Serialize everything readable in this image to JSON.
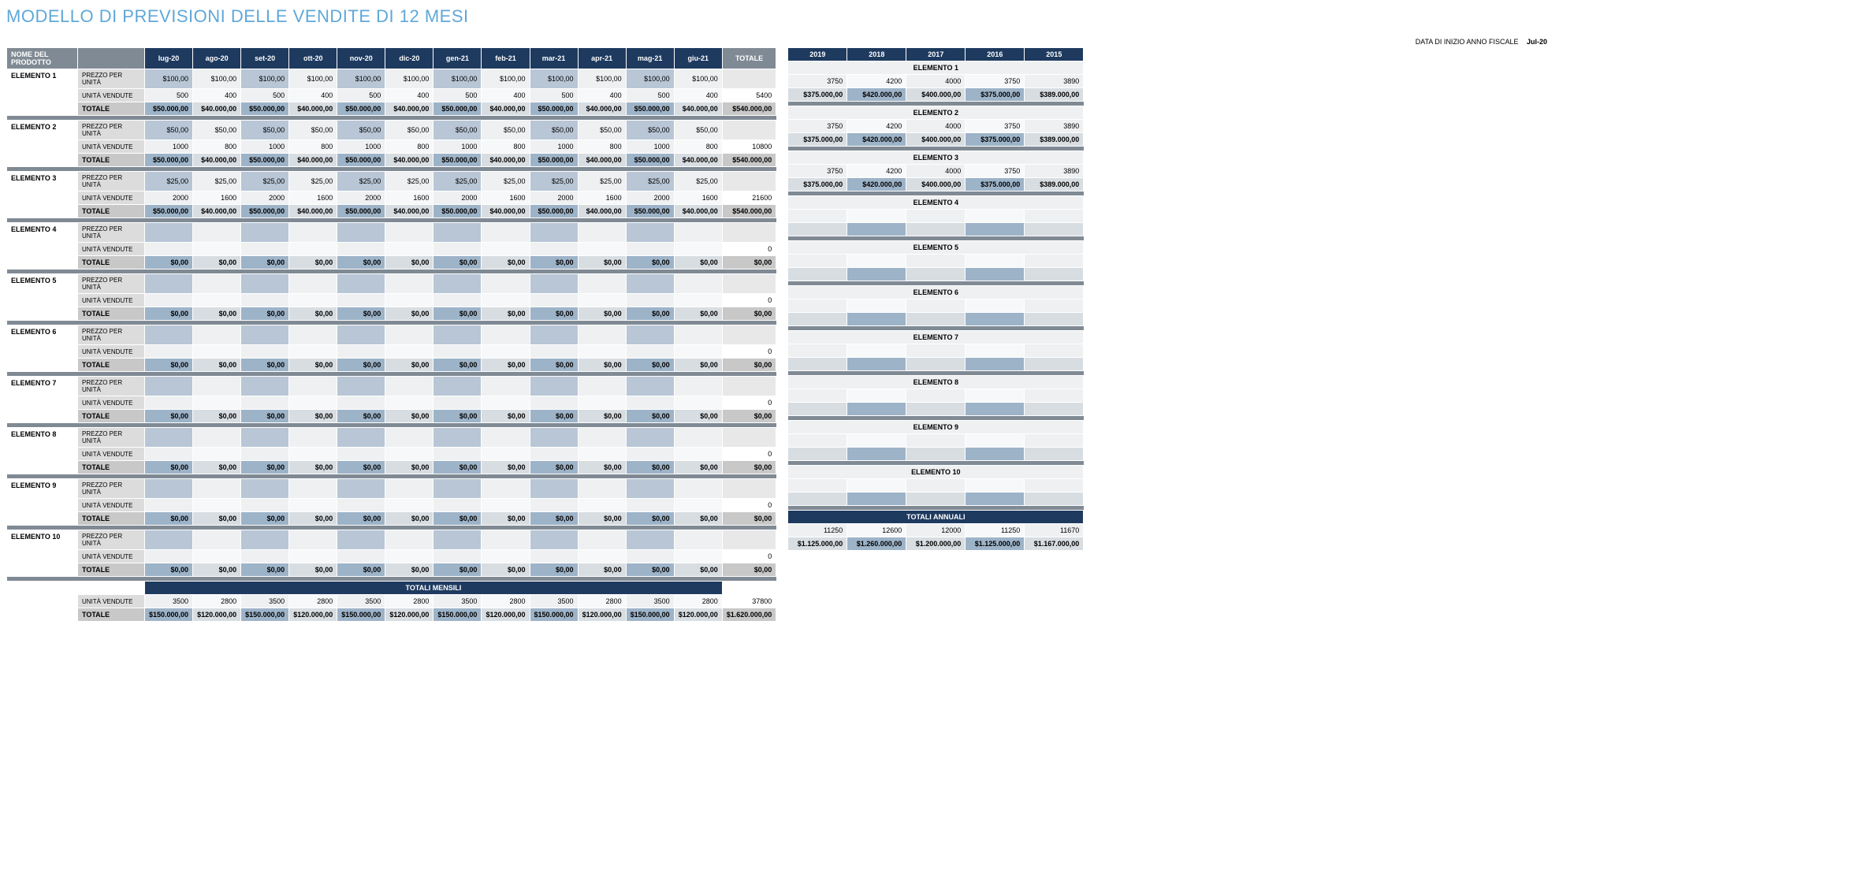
{
  "title": "MODELLO DI PREVISIONI DELLE VENDITE DI 12 MESI",
  "fiscal_label": "DATA DI INIZIO ANNO FISCALE",
  "fiscal_value": "Jul-20",
  "header_product": "NOME DEL PRODOTTO",
  "header_total": "TOTALE",
  "row_price": "PREZZO PER UNITÀ",
  "row_units": "UNITÀ VENDUTE",
  "row_total": "TOTALE",
  "months": [
    "lug-20",
    "ago-20",
    "set-20",
    "ott-20",
    "nov-20",
    "dic-20",
    "gen-21",
    "feb-21",
    "mar-21",
    "apr-21",
    "mag-21",
    "giu-21"
  ],
  "years": [
    "2019",
    "2018",
    "2017",
    "2016",
    "2015"
  ],
  "monthly_totals_title": "TOTALI MENSILI",
  "annual_totals_title": "TOTALI ANNUALI",
  "items": [
    {
      "name": "ELEMENTO 1",
      "price": "$100,00",
      "units": [
        "500",
        "400",
        "500",
        "400",
        "500",
        "400",
        "500",
        "400",
        "500",
        "400",
        "500",
        "400"
      ],
      "units_total": "5400",
      "totals": [
        "$50.000,00",
        "$40.000,00",
        "$50.000,00",
        "$40.000,00",
        "$50.000,00",
        "$40.000,00",
        "$50.000,00",
        "$40.000,00",
        "$50.000,00",
        "$40.000,00",
        "$50.000,00",
        "$40.000,00"
      ],
      "grand": "$540.000,00",
      "yrs_units": [
        "3750",
        "4200",
        "4000",
        "3750",
        "3890"
      ],
      "yrs_totals": [
        "$375.000,00",
        "$420.000,00",
        "$400.000,00",
        "$375.000,00",
        "$389.000,00"
      ]
    },
    {
      "name": "ELEMENTO 2",
      "price": "$50,00",
      "units": [
        "1000",
        "800",
        "1000",
        "800",
        "1000",
        "800",
        "1000",
        "800",
        "1000",
        "800",
        "1000",
        "800"
      ],
      "units_total": "10800",
      "totals": [
        "$50.000,00",
        "$40.000,00",
        "$50.000,00",
        "$40.000,00",
        "$50.000,00",
        "$40.000,00",
        "$50.000,00",
        "$40.000,00",
        "$50.000,00",
        "$40.000,00",
        "$50.000,00",
        "$40.000,00"
      ],
      "grand": "$540.000,00",
      "yrs_units": [
        "3750",
        "4200",
        "4000",
        "3750",
        "3890"
      ],
      "yrs_totals": [
        "$375.000,00",
        "$420.000,00",
        "$400.000,00",
        "$375.000,00",
        "$389.000,00"
      ]
    },
    {
      "name": "ELEMENTO 3",
      "price": "$25,00",
      "units": [
        "2000",
        "1600",
        "2000",
        "1600",
        "2000",
        "1600",
        "2000",
        "1600",
        "2000",
        "1600",
        "2000",
        "1600"
      ],
      "units_total": "21600",
      "totals": [
        "$50.000,00",
        "$40.000,00",
        "$50.000,00",
        "$40.000,00",
        "$50.000,00",
        "$40.000,00",
        "$50.000,00",
        "$40.000,00",
        "$50.000,00",
        "$40.000,00",
        "$50.000,00",
        "$40.000,00"
      ],
      "grand": "$540.000,00",
      "yrs_units": [
        "3750",
        "4200",
        "4000",
        "3750",
        "3890"
      ],
      "yrs_totals": [
        "$375.000,00",
        "$420.000,00",
        "$400.000,00",
        "$375.000,00",
        "$389.000,00"
      ]
    },
    {
      "name": "ELEMENTO 4",
      "price": "",
      "units": [
        "",
        "",
        "",
        "",
        "",
        "",
        "",
        "",
        "",
        "",
        "",
        ""
      ],
      "units_total": "0",
      "totals": [
        "$0,00",
        "$0,00",
        "$0,00",
        "$0,00",
        "$0,00",
        "$0,00",
        "$0,00",
        "$0,00",
        "$0,00",
        "$0,00",
        "$0,00",
        "$0,00"
      ],
      "grand": "$0,00",
      "yrs_units": [
        "",
        "",
        "",
        "",
        ""
      ],
      "yrs_totals": [
        "",
        "",
        "",
        "",
        ""
      ]
    },
    {
      "name": "ELEMENTO 5",
      "price": "",
      "units": [
        "",
        "",
        "",
        "",
        "",
        "",
        "",
        "",
        "",
        "",
        "",
        ""
      ],
      "units_total": "0",
      "totals": [
        "$0,00",
        "$0,00",
        "$0,00",
        "$0,00",
        "$0,00",
        "$0,00",
        "$0,00",
        "$0,00",
        "$0,00",
        "$0,00",
        "$0,00",
        "$0,00"
      ],
      "grand": "$0,00",
      "yrs_units": [
        "",
        "",
        "",
        "",
        ""
      ],
      "yrs_totals": [
        "",
        "",
        "",
        "",
        ""
      ]
    },
    {
      "name": "ELEMENTO 6",
      "price": "",
      "units": [
        "",
        "",
        "",
        "",
        "",
        "",
        "",
        "",
        "",
        "",
        "",
        ""
      ],
      "units_total": "0",
      "totals": [
        "$0,00",
        "$0,00",
        "$0,00",
        "$0,00",
        "$0,00",
        "$0,00",
        "$0,00",
        "$0,00",
        "$0,00",
        "$0,00",
        "$0,00",
        "$0,00"
      ],
      "grand": "$0,00",
      "yrs_units": [
        "",
        "",
        "",
        "",
        ""
      ],
      "yrs_totals": [
        "",
        "",
        "",
        "",
        ""
      ]
    },
    {
      "name": "ELEMENTO 7",
      "price": "",
      "units": [
        "",
        "",
        "",
        "",
        "",
        "",
        "",
        "",
        "",
        "",
        "",
        ""
      ],
      "units_total": "0",
      "totals": [
        "$0,00",
        "$0,00",
        "$0,00",
        "$0,00",
        "$0,00",
        "$0,00",
        "$0,00",
        "$0,00",
        "$0,00",
        "$0,00",
        "$0,00",
        "$0,00"
      ],
      "grand": "$0,00",
      "yrs_units": [
        "",
        "",
        "",
        "",
        ""
      ],
      "yrs_totals": [
        "",
        "",
        "",
        "",
        ""
      ]
    },
    {
      "name": "ELEMENTO 8",
      "price": "",
      "units": [
        "",
        "",
        "",
        "",
        "",
        "",
        "",
        "",
        "",
        "",
        "",
        ""
      ],
      "units_total": "0",
      "totals": [
        "$0,00",
        "$0,00",
        "$0,00",
        "$0,00",
        "$0,00",
        "$0,00",
        "$0,00",
        "$0,00",
        "$0,00",
        "$0,00",
        "$0,00",
        "$0,00"
      ],
      "grand": "$0,00",
      "yrs_units": [
        "",
        "",
        "",
        "",
        ""
      ],
      "yrs_totals": [
        "",
        "",
        "",
        "",
        ""
      ]
    },
    {
      "name": "ELEMENTO 9",
      "price": "",
      "units": [
        "",
        "",
        "",
        "",
        "",
        "",
        "",
        "",
        "",
        "",
        "",
        ""
      ],
      "units_total": "0",
      "totals": [
        "$0,00",
        "$0,00",
        "$0,00",
        "$0,00",
        "$0,00",
        "$0,00",
        "$0,00",
        "$0,00",
        "$0,00",
        "$0,00",
        "$0,00",
        "$0,00"
      ],
      "grand": "$0,00",
      "yrs_units": [
        "",
        "",
        "",
        "",
        ""
      ],
      "yrs_totals": [
        "",
        "",
        "",
        "",
        ""
      ]
    },
    {
      "name": "ELEMENTO 10",
      "price": "",
      "units": [
        "",
        "",
        "",
        "",
        "",
        "",
        "",
        "",
        "",
        "",
        "",
        ""
      ],
      "units_total": "0",
      "totals": [
        "$0,00",
        "$0,00",
        "$0,00",
        "$0,00",
        "$0,00",
        "$0,00",
        "$0,00",
        "$0,00",
        "$0,00",
        "$0,00",
        "$0,00",
        "$0,00"
      ],
      "grand": "$0,00",
      "yrs_units": [
        "",
        "",
        "",
        "",
        ""
      ],
      "yrs_totals": [
        "",
        "",
        "",
        "",
        ""
      ]
    }
  ],
  "monthly_units": [
    "3500",
    "2800",
    "3500",
    "2800",
    "3500",
    "2800",
    "3500",
    "2800",
    "3500",
    "2800",
    "3500",
    "2800"
  ],
  "monthly_units_total": "37800",
  "monthly_totals": [
    "$150.000,00",
    "$120.000,00",
    "$150.000,00",
    "$120.000,00",
    "$150.000,00",
    "$120.000,00",
    "$150.000,00",
    "$120.000,00",
    "$150.000,00",
    "$120.000,00",
    "$150.000,00",
    "$120.000,00"
  ],
  "monthly_grand": "$1.620.000,00",
  "annual_units": [
    "11250",
    "12600",
    "12000",
    "11250",
    "11670"
  ],
  "annual_totals": [
    "$1.125.000,00",
    "$1.260.000,00",
    "$1.200.000,00",
    "$1.125.000,00",
    "$1.167.000,00"
  ]
}
